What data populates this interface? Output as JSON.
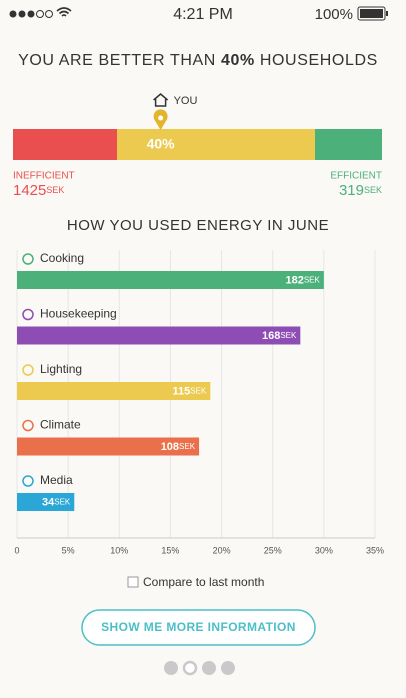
{
  "status_bar": {
    "time": "4:21 PM",
    "battery": "100%"
  },
  "header": {
    "title_parts": [
      "YOU ARE BETTER THAN ",
      "40%",
      " HOUSEHOLDS"
    ]
  },
  "gauge": {
    "you_label": "YOU",
    "value": 40,
    "value_label": "40%",
    "min": 0,
    "max": 100,
    "left_label": "INEFFICIENT",
    "left_amount": "1425",
    "right_label": "EFFICIENT",
    "right_amount": "319",
    "unit": "SEK"
  },
  "chart_data": {
    "type": "bar",
    "title": "HOW YOU USED ENERGY IN JUNE",
    "categories": [
      "Cooking",
      "Housekeeping",
      "Lighting",
      "Climate",
      "Media"
    ],
    "values": [
      30,
      27.7,
      18.9,
      17.8,
      5.6
    ],
    "amount_labels": [
      "182",
      "168",
      "115",
      "108",
      "34"
    ],
    "unit": "SEK",
    "colors": [
      "#4cb07a",
      "#8e4db5",
      "#ecc94f",
      "#e9704a",
      "#2aa7d6"
    ],
    "xlim": [
      0,
      35
    ],
    "xticks": [
      0,
      {
        "value": 5,
        "label": "5%"
      },
      {
        "value": 10,
        "label": "10%"
      },
      {
        "value": 15,
        "label": "15%"
      },
      {
        "value": 20,
        "label": "20%"
      },
      {
        "value": 25,
        "label": "25%"
      },
      {
        "value": 30,
        "label": "30%"
      },
      {
        "value": 35,
        "label": "35%"
      }
    ],
    "grid": true
  },
  "compare_label": "Compare to last month",
  "button_label": "SHOW ME MORE INFORMATION"
}
